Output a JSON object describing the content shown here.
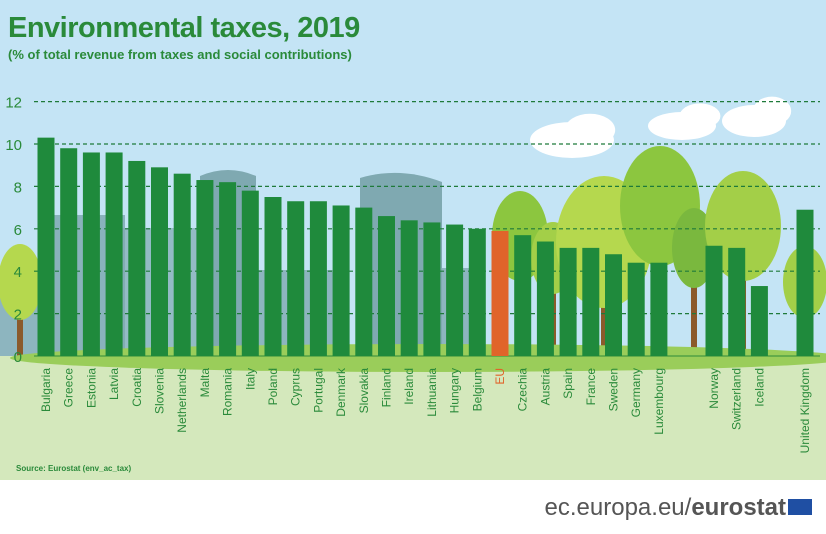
{
  "header": {
    "title": "Environmental taxes, 2019",
    "subtitle": "(% of total revenue from taxes and social contributions)"
  },
  "source": "Source: Eurostat (env_ac_tax)",
  "footer": {
    "domain": "ec.europa.eu/",
    "brand": "eurostat"
  },
  "colors": {
    "bar": "#1f8a3c",
    "highlight": "#e0642a",
    "title": "#2a8a3a",
    "sky": "#c4e4f5",
    "ground": "#d4e8bc",
    "gridline": "#1f7a3a",
    "axis_text": "#2a8a3a",
    "eu_label": "#e0642a"
  },
  "chart_data": {
    "type": "bar",
    "title": "Environmental taxes, 2019",
    "subtitle": "(% of total revenue from taxes and social contributions)",
    "ylim": [
      0,
      12
    ],
    "yticks": [
      0,
      2,
      4,
      6,
      8,
      10,
      12
    ],
    "grid": true,
    "categories": [
      "Bulgaria",
      "Greece",
      "Estonia",
      "Latvia",
      "Croatia",
      "Slovenia",
      "Netherlands",
      "Malta",
      "Romania",
      "Italy",
      "Poland",
      "Cyprus",
      "Portugal",
      "Denmark",
      "Slovakia",
      "Finland",
      "Ireland",
      "Lithuania",
      "Hungary",
      "Belgium",
      "EU",
      "Czechia",
      "Austria",
      "Spain",
      "France",
      "Sweden",
      "Germany",
      "Luxembourg",
      "Norway",
      "Switzerland",
      "Iceland",
      "United Kingdom"
    ],
    "values": [
      10.3,
      9.8,
      9.6,
      9.6,
      9.2,
      8.9,
      8.6,
      8.3,
      8.2,
      7.8,
      7.5,
      7.3,
      7.3,
      7.1,
      7.0,
      6.6,
      6.4,
      6.3,
      6.2,
      6.0,
      5.9,
      5.7,
      5.4,
      5.1,
      5.1,
      4.8,
      4.4,
      4.4,
      5.2,
      5.1,
      3.3,
      6.9
    ],
    "highlight": [
      "EU"
    ]
  }
}
